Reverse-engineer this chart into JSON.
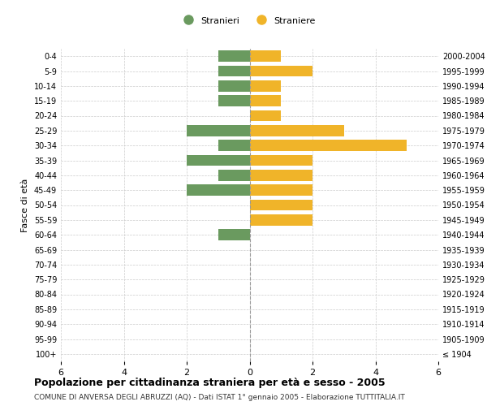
{
  "age_groups": [
    "100+",
    "95-99",
    "90-94",
    "85-89",
    "80-84",
    "75-79",
    "70-74",
    "65-69",
    "60-64",
    "55-59",
    "50-54",
    "45-49",
    "40-44",
    "35-39",
    "30-34",
    "25-29",
    "20-24",
    "15-19",
    "10-14",
    "5-9",
    "0-4"
  ],
  "birth_years": [
    "≤ 1904",
    "1905-1909",
    "1910-1914",
    "1915-1919",
    "1920-1924",
    "1925-1929",
    "1930-1934",
    "1935-1939",
    "1940-1944",
    "1945-1949",
    "1950-1954",
    "1955-1959",
    "1960-1964",
    "1965-1969",
    "1970-1974",
    "1975-1979",
    "1980-1984",
    "1985-1989",
    "1990-1994",
    "1995-1999",
    "2000-2004"
  ],
  "males": [
    0,
    0,
    0,
    0,
    0,
    0,
    0,
    0,
    1,
    0,
    0,
    2,
    1,
    2,
    1,
    2,
    0,
    1,
    1,
    1,
    1
  ],
  "females": [
    0,
    0,
    0,
    0,
    0,
    0,
    0,
    0,
    0,
    2,
    2,
    2,
    2,
    2,
    5,
    3,
    1,
    1,
    1,
    2,
    1
  ],
  "male_color": "#6a9a5f",
  "female_color": "#f0b429",
  "title": "Popolazione per cittadinanza straniera per età e sesso - 2005",
  "subtitle": "COMUNE DI ANVERSA DEGLI ABRUZZI (AQ) - Dati ISTAT 1° gennaio 2005 - Elaborazione TUTTITALIA.IT",
  "ylabel_left": "Fasce di età",
  "legend_male": "Stranieri",
  "legend_female": "Straniere",
  "xlim": 6,
  "background_color": "#ffffff",
  "grid_color": "#cccccc"
}
